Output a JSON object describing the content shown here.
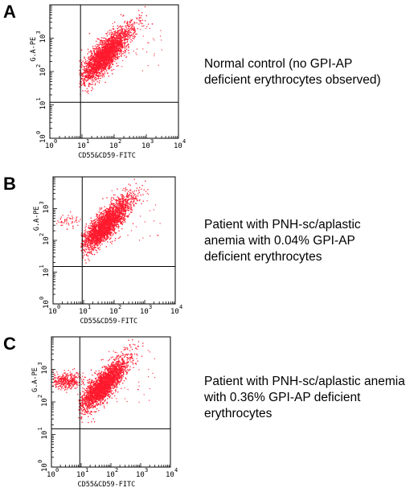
{
  "chart_data": [
    {
      "type": "scatter",
      "panel_label": "A",
      "xlabel": "CD55&CD59-FITC",
      "ylabel": "G.A-PE",
      "x_scale": "log",
      "y_scale": "log",
      "xlim": [
        1,
        10000
      ],
      "ylim": [
        1,
        10000
      ],
      "x_tick_labels": [
        "10",
        "10",
        "10",
        "10",
        "10"
      ],
      "x_tick_exponents": [
        "0",
        "1",
        "2",
        "3",
        "4"
      ],
      "y_tick_labels": [
        "10",
        "10",
        "10",
        "10"
      ],
      "y_tick_exponents": [
        "0",
        "1",
        "2",
        "3"
      ],
      "quadrant_gate": {
        "x": 9,
        "y": 12
      },
      "main_population": {
        "center": [
          40,
          250
        ],
        "spread": "diagonal"
      },
      "deficient_population": null,
      "description": [
        "Normal control (no GPI-AP",
        "deficient erythrocytes observed)"
      ]
    },
    {
      "type": "scatter",
      "panel_label": "B",
      "xlabel": "CD55&CD59-FITC",
      "ylabel": "G.A-PE",
      "x_scale": "log",
      "y_scale": "log",
      "xlim": [
        1,
        10000
      ],
      "ylim": [
        1,
        10000
      ],
      "x_tick_labels": [
        "10",
        "10",
        "10",
        "10",
        "10"
      ],
      "x_tick_exponents": [
        "0",
        "1",
        "2",
        "3",
        "4"
      ],
      "y_tick_labels": [
        "10",
        "10",
        "10",
        "10"
      ],
      "y_tick_exponents": [
        "0",
        "1",
        "2",
        "3"
      ],
      "quadrant_gate": {
        "x": 9,
        "y": 15
      },
      "main_population": {
        "center": [
          40,
          250
        ],
        "spread": "diagonal"
      },
      "deficient_population": {
        "center": [
          3,
          400
        ],
        "relative_size": "sparse"
      },
      "description": [
        "Patient with PNH-sc/aplastic",
        "anemia with 0.04% GPI-AP",
        "deficient erythrocytes"
      ]
    },
    {
      "type": "scatter",
      "panel_label": "C",
      "xlabel": "CD55&CD59-FITC",
      "ylabel": "G.A-PE",
      "x_scale": "log",
      "y_scale": "log",
      "xlim": [
        1,
        10000
      ],
      "ylim": [
        1,
        10000
      ],
      "x_tick_labels": [
        "10",
        "10",
        "10",
        "10",
        "10"
      ],
      "x_tick_exponents": [
        "0",
        "1",
        "2",
        "3",
        "4"
      ],
      "y_tick_labels": [
        "10",
        "10",
        "10",
        "10"
      ],
      "y_tick_exponents": [
        "0",
        "1",
        "2",
        "3"
      ],
      "quadrant_gate": {
        "x": 9,
        "y": 15
      },
      "main_population": {
        "center": [
          40,
          250
        ],
        "spread": "diagonal"
      },
      "deficient_population": {
        "center": [
          3,
          450
        ],
        "relative_size": "moderate"
      },
      "description": [
        "Patient with PNH-sc/aplastic anemia",
        "with 0.36% GPI-AP deficient",
        "erythrocytes"
      ]
    }
  ],
  "colors": {
    "dots": "#ff1a2e",
    "axes": "#000000"
  }
}
